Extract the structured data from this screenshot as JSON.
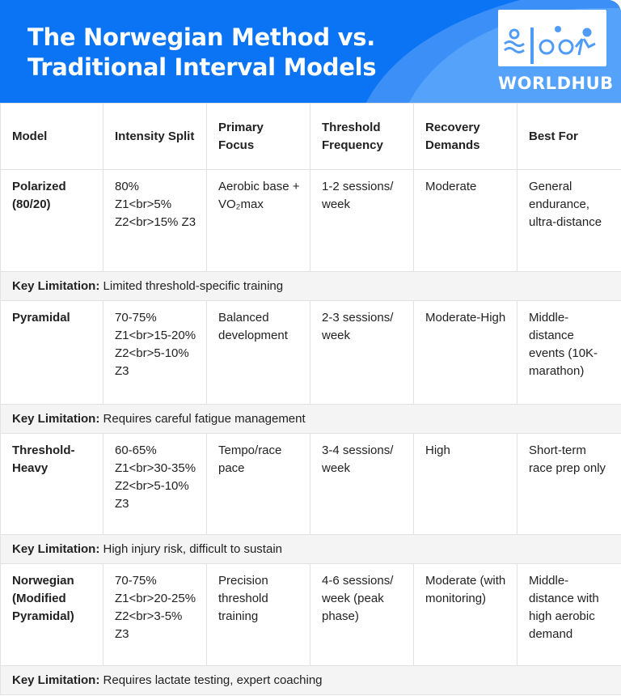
{
  "header": {
    "title_line1": "The Norwegian Method vs.",
    "title_line2": "Traditional Interval Models",
    "logo_text": "WORLDHUB",
    "logo_mark": "TRI",
    "accent": "#0a74f5"
  },
  "table": {
    "columns": [
      "Model",
      "Intensity Split",
      "Primary Focus",
      "Threshold Frequency",
      "Recovery Demands",
      "Best For"
    ],
    "limitation_label": "Key Limitation:",
    "rows": [
      {
        "cells": [
          "Polarized (80/20)",
          "80% Z1<br>5% Z2<br>15% Z3",
          "Aerobic base + VO₂max",
          "1-2 sessions/ week",
          "Moderate",
          "General endurance, ultra-distance"
        ],
        "limitation": "Limited threshold-specific training",
        "height": 126
      },
      {
        "cells": [
          "Pyramidal",
          "70-75% Z1<br>15-20% Z2<br>5-10% Z3",
          "Balanced development",
          "2-3 sessions/ week",
          "Moderate-High",
          "Middle-distance events (10K-marathon)"
        ],
        "limitation": "Requires careful fatigue management",
        "height": 128
      },
      {
        "cells": [
          "Threshold-Heavy",
          "60-65% Z1<br>30-35% Z2<br>5-10% Z3",
          "Tempo/race pace",
          "3-4 sessions/ week",
          "High",
          "Short-term race prep only"
        ],
        "limitation": "High injury risk, difficult to sustain",
        "height": 125
      },
      {
        "cells": [
          "Norwegian (Modified Pyramidal)",
          "70-75% Z1<br>20-25% Z2<br>3-5% Z3",
          "Precision threshold training",
          "4-6 sessions/ week (peak phase)",
          "Moderate (with monitoring)",
          "Middle-distance with high aerobic demand"
        ],
        "limitation": "Requires lactate testing, expert coaching",
        "height": 126
      }
    ]
  }
}
